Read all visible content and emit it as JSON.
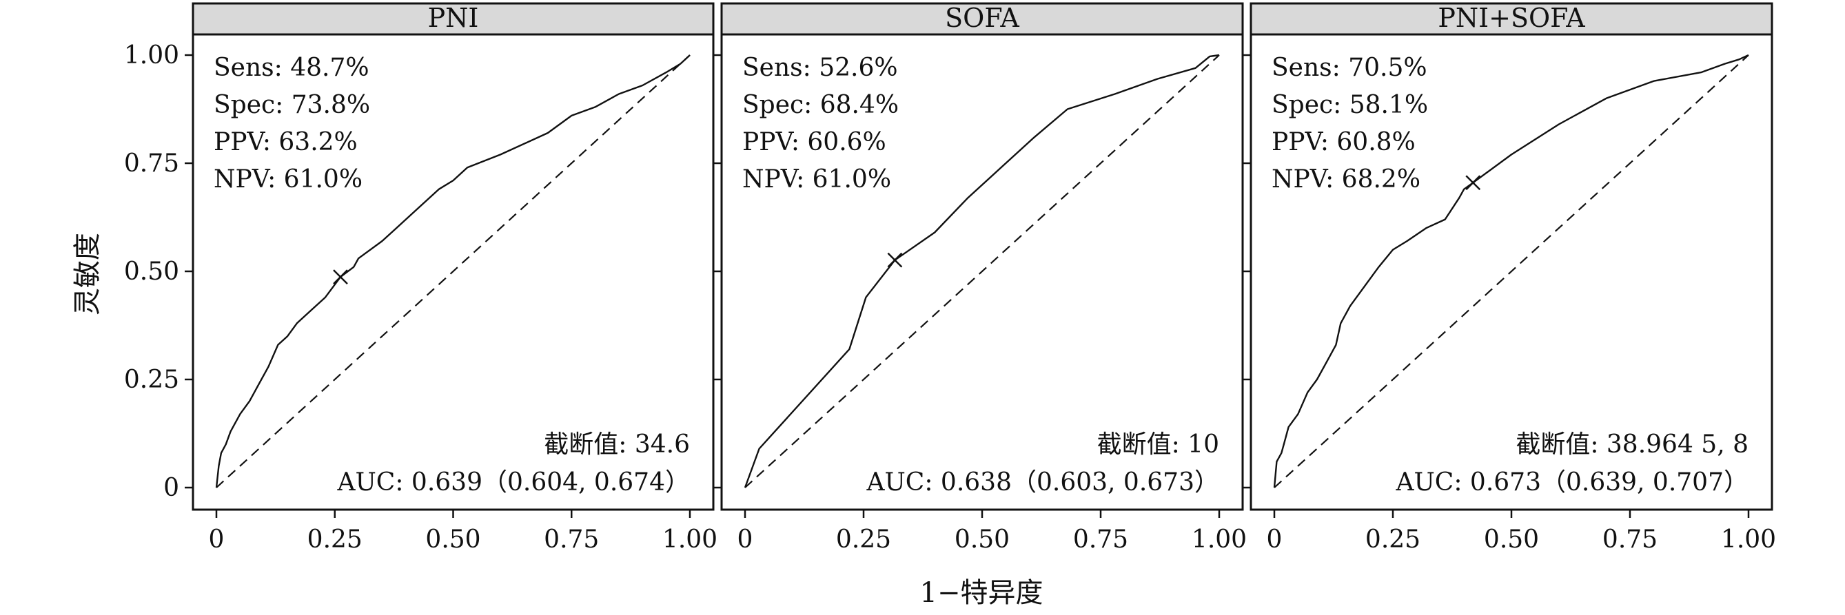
{
  "chart_data": {
    "type": "line",
    "layout": "faceted",
    "xlabel": "1−特异度",
    "ylabel": "灵敏度",
    "xlim": [
      0,
      1
    ],
    "ylim": [
      0,
      1
    ],
    "x_ticks": [
      "0",
      "0.25",
      "0.50",
      "0.75",
      "1.00"
    ],
    "y_ticks": [
      "0",
      "0.25",
      "0.50",
      "0.75",
      "1.00"
    ],
    "reference_line": {
      "x": [
        0,
        1
      ],
      "y": [
        0,
        1
      ],
      "style": "dashed"
    },
    "panels": [
      {
        "title": "PNI",
        "stats": [
          "Sens: 48.7%",
          "Spec: 73.8%",
          "PPV: 63.2%",
          "NPV: 61.0%"
        ],
        "cutoff_label": "截断值: 34.6",
        "auc_label": "AUC: 0.639（0.604, 0.674）",
        "cutoff_point": {
          "x": 0.262,
          "y": 0.487
        },
        "x": [
          0,
          0.005,
          0.01,
          0.02,
          0.03,
          0.05,
          0.07,
          0.09,
          0.11,
          0.13,
          0.15,
          0.17,
          0.2,
          0.23,
          0.262,
          0.29,
          0.3,
          0.35,
          0.38,
          0.42,
          0.47,
          0.5,
          0.53,
          0.6,
          0.7,
          0.75,
          0.8,
          0.85,
          0.9,
          0.95,
          0.98,
          1.0
        ],
        "y": [
          0,
          0.05,
          0.08,
          0.1,
          0.13,
          0.17,
          0.2,
          0.24,
          0.28,
          0.33,
          0.35,
          0.38,
          0.41,
          0.44,
          0.487,
          0.51,
          0.53,
          0.57,
          0.6,
          0.64,
          0.69,
          0.71,
          0.74,
          0.77,
          0.82,
          0.86,
          0.88,
          0.91,
          0.93,
          0.96,
          0.98,
          1.0
        ]
      },
      {
        "title": "SOFA",
        "stats": [
          "Sens: 52.6%",
          "Spec: 68.4%",
          "PPV: 60.6%",
          "NPV: 61.0%"
        ],
        "cutoff_label": "截断值: 10",
        "auc_label": "AUC: 0.638（0.603, 0.673）",
        "cutoff_point": {
          "x": 0.316,
          "y": 0.526
        },
        "x": [
          0,
          0.03,
          0.22,
          0.255,
          0.316,
          0.4,
          0.47,
          0.54,
          0.61,
          0.68,
          0.78,
          0.87,
          0.95,
          0.98,
          1.0
        ],
        "y": [
          0,
          0.09,
          0.32,
          0.44,
          0.526,
          0.59,
          0.67,
          0.74,
          0.81,
          0.875,
          0.91,
          0.945,
          0.97,
          0.997,
          1.0
        ]
      },
      {
        "title": "PNI+SOFA",
        "stats": [
          "Sens: 70.5%",
          "Spec: 58.1%",
          "PPV: 60.8%",
          "NPV: 68.2%"
        ],
        "cutoff_label": "截断值: 38.964 5, 8",
        "auc_label": "AUC: 0.673（0.639, 0.707）",
        "cutoff_point": {
          "x": 0.419,
          "y": 0.705
        },
        "x": [
          0,
          0.005,
          0.015,
          0.02,
          0.03,
          0.05,
          0.07,
          0.09,
          0.11,
          0.13,
          0.14,
          0.16,
          0.18,
          0.2,
          0.22,
          0.25,
          0.28,
          0.32,
          0.36,
          0.39,
          0.4,
          0.419,
          0.45,
          0.5,
          0.6,
          0.7,
          0.8,
          0.9,
          0.95,
          0.98,
          1.0
        ],
        "y": [
          0,
          0.06,
          0.08,
          0.1,
          0.14,
          0.17,
          0.22,
          0.25,
          0.29,
          0.33,
          0.38,
          0.42,
          0.45,
          0.48,
          0.51,
          0.55,
          0.57,
          0.6,
          0.62,
          0.67,
          0.69,
          0.705,
          0.73,
          0.77,
          0.84,
          0.9,
          0.94,
          0.96,
          0.98,
          0.99,
          1.0
        ]
      }
    ]
  }
}
